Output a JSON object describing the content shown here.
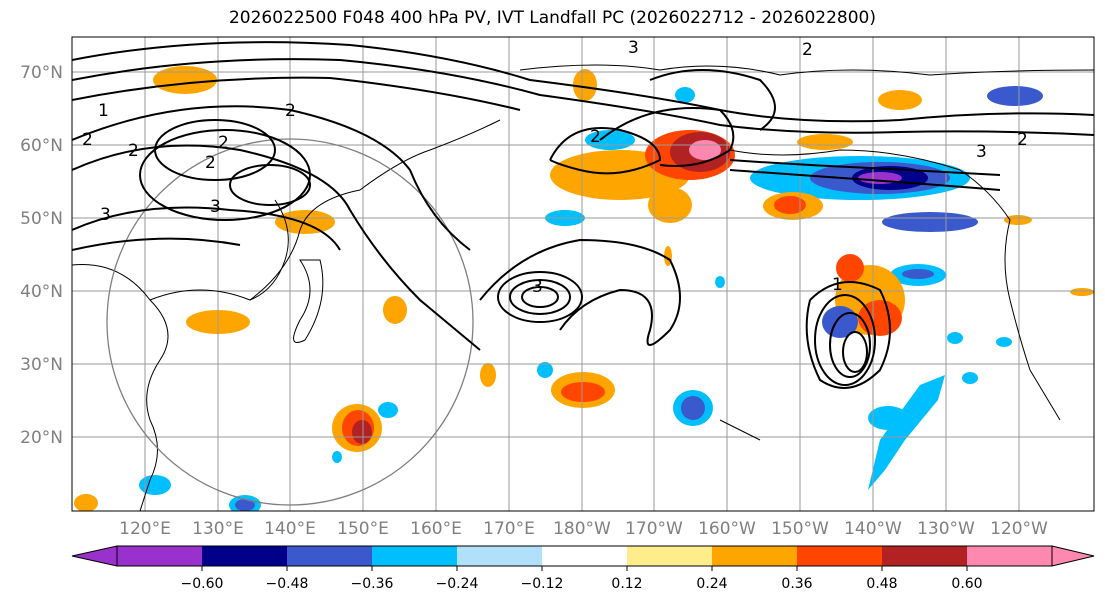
{
  "title": "2026022500 F048 400 hPa PV, IVT Landfall PC (2026022712 - 2026022800)",
  "map": {
    "lat_labels": [
      "70°N",
      "60°N",
      "50°N",
      "40°N",
      "30°N",
      "20°N"
    ],
    "lon_labels": [
      "120°E",
      "130°E",
      "140°E",
      "150°E",
      "160°E",
      "170°E",
      "180°W",
      "170°W",
      "160°W",
      "150°W",
      "140°W",
      "130°W",
      "120°W"
    ],
    "contour_labels": [
      "1",
      "2",
      "2",
      "2",
      "3",
      "3",
      "2",
      "3",
      "2",
      "3",
      "3",
      "2",
      "2",
      "1",
      "2"
    ]
  },
  "colorbar": {
    "tick_labels": [
      "−0.60",
      "−0.48",
      "−0.36",
      "−0.24",
      "−0.12",
      "0.12",
      "0.24",
      "0.36",
      "0.48",
      "0.60"
    ],
    "colors": [
      "#9932cc",
      "#00008b",
      "#3a59cd",
      "#00bfff",
      "#b0e0fa",
      "#ffffff",
      "#ffec8b",
      "#ffa500",
      "#ff4500",
      "#b22222",
      "#ff88b0"
    ]
  }
}
